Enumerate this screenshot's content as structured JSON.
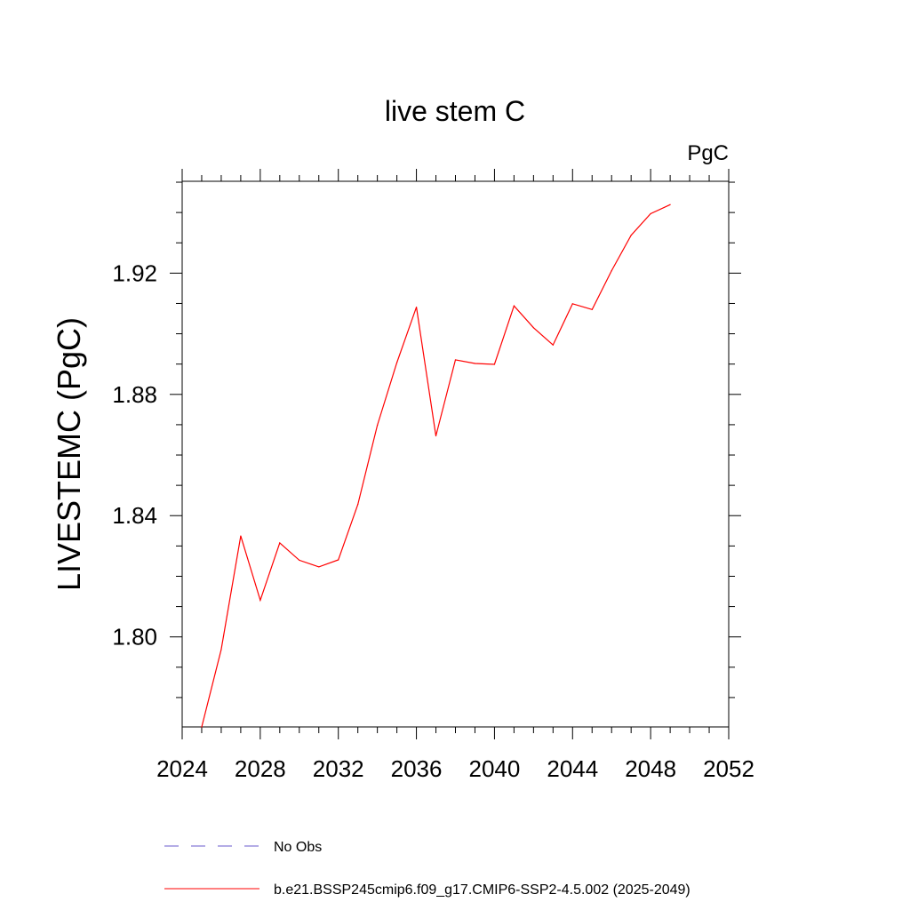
{
  "chart_data": {
    "type": "line",
    "title": "live stem C",
    "units": "PgC",
    "xlabel": "",
    "ylabel": "LIVESTEMC  (PgC)",
    "xlim": [
      2024,
      2052
    ],
    "ylim": [
      1.7703,
      1.9503
    ],
    "xticks": [
      2024,
      2028,
      2032,
      2036,
      2040,
      2044,
      2048,
      2052
    ],
    "xtick_labels": [
      "2024",
      "2028",
      "2032",
      "2036",
      "2040",
      "2044",
      "2048",
      "2052"
    ],
    "yticks": [
      1.8,
      1.84,
      1.88,
      1.92
    ],
    "ytick_labels": [
      "1.80",
      "1.84",
      "1.88",
      "1.92"
    ],
    "grid": false,
    "legend_position": "bottom",
    "series": [
      {
        "name": "b.e21.BSSP245cmip6.f09_g17.CMIP6-SSP2-4.5.002 (2025-2049)",
        "color": "#ff0000",
        "style": "solid",
        "x": [
          2025,
          2026,
          2027,
          2028,
          2029,
          2030,
          2031,
          2032,
          2033,
          2034,
          2035,
          2036,
          2037,
          2038,
          2039,
          2040,
          2041,
          2042,
          2043,
          2044,
          2045,
          2046,
          2047,
          2048,
          2049
        ],
        "values": [
          1.7703,
          1.7958,
          1.8333,
          1.8121,
          1.831,
          1.8253,
          1.8231,
          1.8254,
          1.8437,
          1.8698,
          1.8905,
          1.9088,
          1.8663,
          1.8914,
          1.8902,
          1.8899,
          1.9092,
          1.902,
          1.8963,
          1.9099,
          1.908,
          1.9208,
          1.9325,
          1.9396,
          1.9426
        ]
      }
    ],
    "legend": [
      {
        "label": "No Obs",
        "color": "#6a5acd",
        "style": "dashed"
      },
      {
        "label": "b.e21.BSSP245cmip6.f09_g17.CMIP6-SSP2-4.5.002 (2025-2049)",
        "color": "#ff0000",
        "style": "solid"
      }
    ]
  }
}
